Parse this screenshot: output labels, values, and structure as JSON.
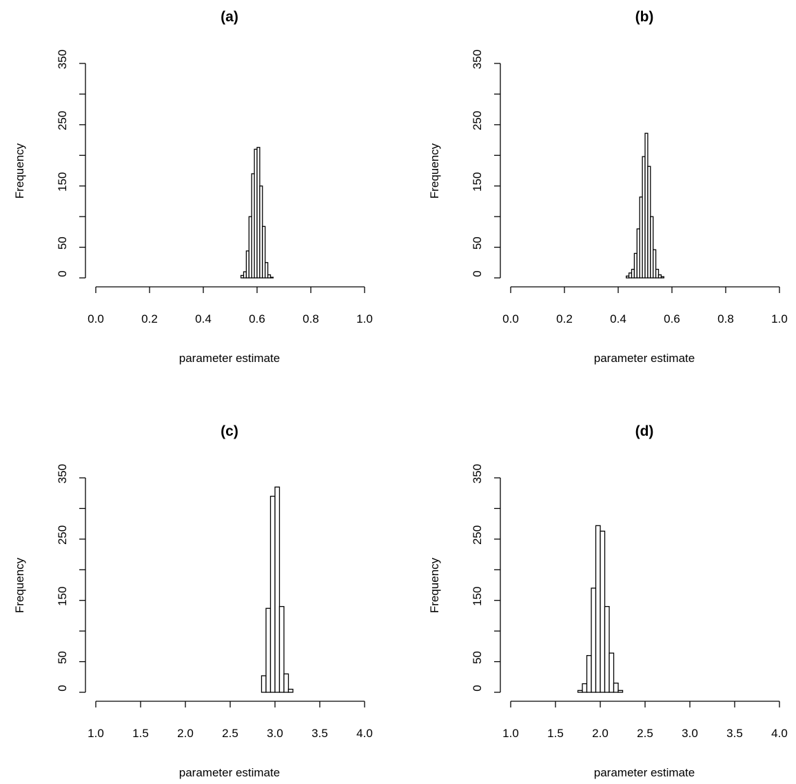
{
  "chart_data": [
    {
      "type": "bar",
      "title": "(a)",
      "xlabel": "parameter estimate",
      "ylabel": "Frequency",
      "xlim": [
        0.0,
        1.0
      ],
      "ylim": [
        0,
        350
      ],
      "xticks": [
        "0.0",
        "0.2",
        "0.4",
        "0.6",
        "0.8",
        "1.0"
      ],
      "yticks": [
        "0",
        "50",
        "150",
        "250",
        "350"
      ],
      "bin_width": 0.01,
      "bin_starts": [
        0.54,
        0.55,
        0.56,
        0.57,
        0.58,
        0.59,
        0.6,
        0.61,
        0.62,
        0.63,
        0.64,
        0.65
      ],
      "values": [
        4,
        10,
        44,
        100,
        170,
        210,
        213,
        150,
        84,
        25,
        5,
        1
      ]
    },
    {
      "type": "bar",
      "title": "(b)",
      "xlabel": "parameter estimate",
      "ylabel": "Frequency",
      "xlim": [
        0.0,
        1.0
      ],
      "ylim": [
        0,
        350
      ],
      "xticks": [
        "0.0",
        "0.2",
        "0.4",
        "0.6",
        "0.8",
        "1.0"
      ],
      "yticks": [
        "0",
        "50",
        "150",
        "250",
        "350"
      ],
      "bin_width": 0.01,
      "bin_starts": [
        0.43,
        0.44,
        0.45,
        0.46,
        0.47,
        0.48,
        0.49,
        0.5,
        0.51,
        0.52,
        0.53,
        0.54,
        0.55,
        0.56
      ],
      "values": [
        3,
        8,
        14,
        40,
        80,
        132,
        198,
        236,
        182,
        100,
        46,
        14,
        5,
        2
      ]
    },
    {
      "type": "bar",
      "title": "(c)",
      "xlabel": "parameter estimate",
      "ylabel": "Frequency",
      "xlim": [
        1.0,
        4.0
      ],
      "ylim": [
        0,
        350
      ],
      "xticks": [
        "1.0",
        "1.5",
        "2.0",
        "2.5",
        "3.0",
        "3.5",
        "4.0"
      ],
      "yticks": [
        "0",
        "50",
        "150",
        "250",
        "350"
      ],
      "bin_width": 0.05,
      "bin_starts": [
        2.85,
        2.9,
        2.95,
        3.0,
        3.05,
        3.1,
        3.15
      ],
      "values": [
        27,
        137,
        320,
        335,
        140,
        30,
        5
      ]
    },
    {
      "type": "bar",
      "title": "(d)",
      "xlabel": "parameter estimate",
      "ylabel": "Frequency",
      "xlim": [
        1.0,
        4.0
      ],
      "ylim": [
        0,
        350
      ],
      "xticks": [
        "1.0",
        "1.5",
        "2.0",
        "2.5",
        "3.0",
        "3.5",
        "4.0"
      ],
      "yticks": [
        "0",
        "50",
        "150",
        "250",
        "350"
      ],
      "bin_width": 0.05,
      "bin_starts": [
        1.75,
        1.8,
        1.85,
        1.9,
        1.95,
        2.0,
        2.05,
        2.1,
        2.15,
        2.2
      ],
      "values": [
        3,
        14,
        60,
        170,
        272,
        263,
        140,
        64,
        15,
        3
      ]
    }
  ]
}
